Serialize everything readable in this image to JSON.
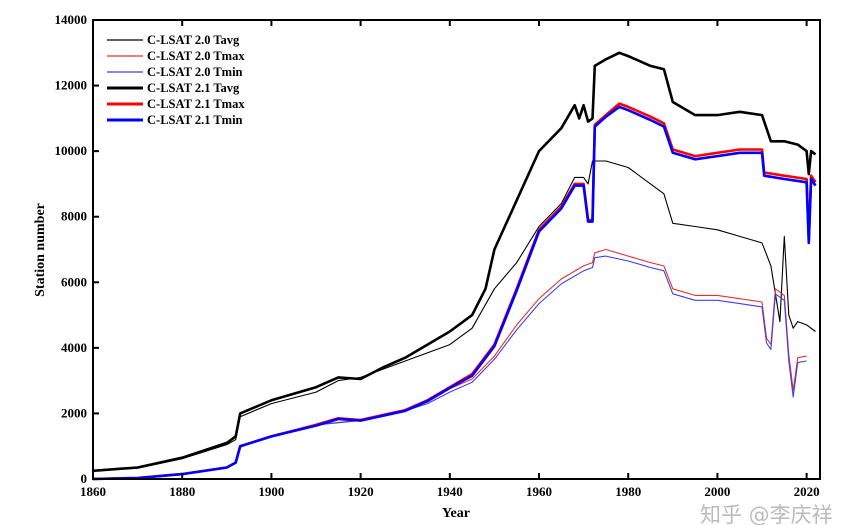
{
  "chart_data": {
    "type": "line",
    "title": "",
    "xlabel": "Year",
    "ylabel": "Station number",
    "xlim": [
      1860,
      2023
    ],
    "ylim": [
      0,
      14000
    ],
    "xticks": [
      1860,
      1880,
      1900,
      1920,
      1940,
      1960,
      1980,
      2000,
      2020
    ],
    "yticks": [
      0,
      2000,
      4000,
      6000,
      8000,
      10000,
      12000,
      14000
    ],
    "grid": false,
    "legend_position": "top-left",
    "watermark": "知乎 @李庆祥",
    "series": [
      {
        "name": "C-LSAT 2.0 Tavg",
        "color": "#000000",
        "thick": false,
        "x": [
          1860,
          1870,
          1880,
          1890,
          1892,
          1893,
          1900,
          1910,
          1915,
          1920,
          1930,
          1940,
          1945,
          1950,
          1955,
          1960,
          1965,
          1968,
          1970,
          1971,
          1972,
          1975,
          1980,
          1985,
          1988,
          1990,
          1995,
          2000,
          2005,
          2010,
          2012,
          2014,
          2015,
          2016,
          2017,
          2018,
          2020,
          2022
        ],
        "y": [
          250,
          330,
          620,
          1050,
          1200,
          1900,
          2300,
          2650,
          3000,
          3100,
          3600,
          4100,
          4600,
          5800,
          6600,
          7700,
          8400,
          9200,
          9200,
          9000,
          9700,
          9700,
          9500,
          9000,
          8700,
          7800,
          7700,
          7600,
          7400,
          7200,
          6500,
          4800,
          7400,
          5000,
          4600,
          4800,
          4700,
          4500
        ]
      },
      {
        "name": "C-LSAT 2.0 Tmax",
        "color": "#e83030",
        "thick": false,
        "x": [
          1860,
          1870,
          1880,
          1890,
          1892,
          1893,
          1900,
          1910,
          1920,
          1930,
          1935,
          1940,
          1945,
          1950,
          1955,
          1960,
          1965,
          1970,
          1972,
          1972.5,
          1975,
          1980,
          1985,
          1988,
          1990,
          1995,
          2000,
          2005,
          2010,
          2011,
          2012,
          2013,
          2015,
          2016,
          2017,
          2018,
          2020
        ],
        "y": [
          0,
          30,
          150,
          350,
          500,
          1000,
          1300,
          1650,
          1800,
          2100,
          2350,
          2750,
          3050,
          3750,
          4700,
          5500,
          6100,
          6500,
          6600,
          6900,
          7000,
          6800,
          6600,
          6500,
          5800,
          5600,
          5600,
          5500,
          5400,
          4300,
          4100,
          5800,
          5600,
          3800,
          2700,
          3700,
          3750
        ]
      },
      {
        "name": "C-LSAT 2.0 Tmin",
        "color": "#4040e0",
        "thick": false,
        "x": [
          1860,
          1870,
          1880,
          1890,
          1892,
          1893,
          1900,
          1910,
          1920,
          1930,
          1935,
          1940,
          1945,
          1950,
          1955,
          1960,
          1965,
          1970,
          1972,
          1972.5,
          1975,
          1980,
          1985,
          1988,
          1990,
          1995,
          2000,
          2005,
          2010,
          2011,
          2012,
          2013,
          2015,
          2016,
          2017,
          2018,
          2020
        ],
        "y": [
          0,
          30,
          150,
          350,
          500,
          1000,
          1300,
          1650,
          1780,
          2080,
          2300,
          2650,
          2950,
          3650,
          4550,
          5350,
          5950,
          6350,
          6450,
          6750,
          6800,
          6650,
          6450,
          6350,
          5650,
          5450,
          5450,
          5350,
          5250,
          4150,
          3950,
          5650,
          5450,
          3600,
          2500,
          3550,
          3600
        ]
      },
      {
        "name": "C-LSAT 2.1 Tavg",
        "color": "#000000",
        "thick": true,
        "x": [
          1860,
          1870,
          1880,
          1890,
          1892,
          1893,
          1900,
          1910,
          1915,
          1920,
          1925,
          1930,
          1935,
          1940,
          1945,
          1948,
          1950,
          1955,
          1960,
          1965,
          1968,
          1969,
          1970,
          1971,
          1972,
          1972.5,
          1975,
          1978,
          1980,
          1985,
          1988,
          1990,
          1995,
          2000,
          2005,
          2010,
          2012,
          2015,
          2018,
          2020,
          2020.5,
          2021,
          2022
        ],
        "y": [
          250,
          350,
          650,
          1100,
          1300,
          2000,
          2400,
          2800,
          3100,
          3050,
          3400,
          3700,
          4100,
          4500,
          5000,
          5800,
          7000,
          8500,
          10000,
          10700,
          11400,
          11000,
          11400,
          10900,
          11000,
          12600,
          12800,
          13000,
          12900,
          12600,
          12500,
          11500,
          11100,
          11100,
          11200,
          11100,
          10300,
          10300,
          10200,
          10000,
          9300,
          10000,
          9900
        ]
      },
      {
        "name": "C-LSAT 2.1 Tmax",
        "color": "#ff0000",
        "thick": true,
        "x": [
          1860,
          1870,
          1880,
          1890,
          1892,
          1893,
          1900,
          1910,
          1915,
          1920,
          1930,
          1935,
          1940,
          1945,
          1950,
          1955,
          1960,
          1965,
          1968,
          1970,
          1971,
          1972,
          1972.5,
          1975,
          1978,
          1980,
          1985,
          1988,
          1990,
          1995,
          2000,
          2005,
          2010,
          2010.5,
          2015,
          2020,
          2020.5,
          2021,
          2022
        ],
        "y": [
          0,
          30,
          150,
          350,
          500,
          1000,
          1300,
          1650,
          1850,
          1800,
          2100,
          2400,
          2800,
          3200,
          4100,
          5800,
          7600,
          8300,
          9000,
          9000,
          7900,
          7900,
          10800,
          11100,
          11450,
          11350,
          11050,
          10850,
          10050,
          9850,
          9950,
          10050,
          10050,
          9350,
          9250,
          9150,
          7300,
          9250,
          9050
        ]
      },
      {
        "name": "C-LSAT 2.1 Tmin",
        "color": "#0000ff",
        "thick": true,
        "x": [
          1860,
          1870,
          1880,
          1890,
          1892,
          1893,
          1900,
          1910,
          1915,
          1920,
          1930,
          1935,
          1940,
          1945,
          1950,
          1955,
          1960,
          1965,
          1968,
          1970,
          1971,
          1972,
          1972.5,
          1975,
          1978,
          1980,
          1985,
          1988,
          1990,
          1995,
          2000,
          2005,
          2010,
          2010.5,
          2015,
          2020,
          2020.5,
          2021,
          2022
        ],
        "y": [
          0,
          30,
          150,
          350,
          500,
          1000,
          1300,
          1630,
          1830,
          1780,
          2080,
          2380,
          2780,
          3150,
          4050,
          5750,
          7550,
          8250,
          8950,
          8950,
          7850,
          7850,
          10750,
          11050,
          11350,
          11250,
          10950,
          10750,
          9950,
          9750,
          9850,
          9950,
          9950,
          9250,
          9150,
          9050,
          7200,
          9150,
          8950
        ]
      }
    ]
  }
}
